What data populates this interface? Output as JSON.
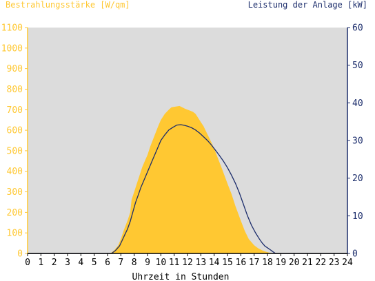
{
  "colors": {
    "background": "#FFFFFF",
    "plot_background": "#DCDCDC",
    "irradiance_fill": "#FFC832",
    "power_line": "#1B2C6B",
    "left_axis": "#FFC832",
    "right_axis": "#1B2C6B",
    "bottom_axis": "#000000"
  },
  "chart_data": {
    "type": "area",
    "left_axis_title": "Bestrahlungsstärke [W/qm]",
    "right_axis_title": "Leistung der Anlage [kW]",
    "xlabel": "Uhrzeit in Stunden",
    "xlim": [
      0,
      24
    ],
    "ylim_left": [
      0,
      1100
    ],
    "ylim_right": [
      0,
      60
    ],
    "x_ticks": [
      0,
      1,
      2,
      3,
      4,
      5,
      6,
      7,
      8,
      9,
      10,
      11,
      12,
      13,
      14,
      15,
      16,
      17,
      18,
      19,
      20,
      21,
      22,
      23,
      24
    ],
    "x_tick_labels": [
      "0",
      "1",
      "2",
      "3",
      "4",
      "5",
      "6",
      "7",
      "8",
      "9",
      "10",
      "11",
      "12",
      "13",
      "14",
      "15",
      "16",
      "17",
      "18",
      "19",
      "20",
      "21",
      "22",
      "23",
      "24"
    ],
    "y_left_ticks": [
      0,
      100,
      200,
      300,
      400,
      500,
      600,
      700,
      800,
      900,
      1000,
      1100
    ],
    "y_left_tick_labels": [
      "0",
      "100",
      "200",
      "300",
      "400",
      "500",
      "600",
      "700",
      "800",
      "900",
      "1000",
      "1100"
    ],
    "y_right_ticks": [
      0,
      10,
      20,
      30,
      40,
      50,
      60
    ],
    "y_right_tick_labels": [
      "0",
      "10",
      "20",
      "30",
      "40",
      "50",
      "60"
    ],
    "grid": false,
    "series": [
      {
        "name": "Bestrahlungsstärke",
        "axis": "left",
        "style": "area",
        "x": [
          0,
          6.2,
          6.5,
          6.8,
          7.0,
          7.2,
          7.5,
          7.7,
          7.8,
          7.9,
          8.0,
          8.2,
          8.4,
          8.6,
          8.8,
          9.0,
          9.2,
          9.5,
          9.8,
          10.0,
          10.3,
          10.6,
          10.8,
          11.0,
          11.2,
          11.4,
          11.6,
          11.8,
          12.0,
          12.2,
          12.4,
          12.6,
          12.8,
          13.0,
          13.2,
          13.5,
          13.8,
          14.0,
          14.3,
          14.6,
          15.0,
          15.3,
          15.6,
          16.0,
          16.3,
          16.6,
          17.0,
          17.3,
          17.6,
          17.9,
          18.2,
          18.5,
          18.8,
          24
        ],
        "y": [
          0,
          0,
          15,
          40,
          70,
          110,
          160,
          200,
          260,
          280,
          300,
          340,
          380,
          420,
          450,
          480,
          520,
          570,
          620,
          650,
          680,
          700,
          712,
          714,
          716,
          718,
          712,
          705,
          700,
          695,
          690,
          680,
          660,
          640,
          620,
          580,
          540,
          510,
          460,
          410,
          340,
          290,
          230,
          160,
          110,
          70,
          40,
          25,
          15,
          8,
          3,
          0,
          0,
          0
        ]
      },
      {
        "name": "Leistung",
        "axis": "right",
        "style": "line",
        "x": [
          0,
          6.3,
          6.6,
          6.9,
          7.1,
          7.3,
          7.5,
          7.7,
          7.9,
          8.1,
          8.3,
          8.5,
          8.8,
          9.1,
          9.4,
          9.7,
          10.0,
          10.3,
          10.6,
          10.9,
          11.2,
          11.5,
          11.8,
          12.0,
          12.3,
          12.6,
          12.9,
          13.2,
          13.5,
          13.8,
          14.1,
          14.4,
          14.7,
          15.0,
          15.3,
          15.6,
          15.9,
          16.2,
          16.5,
          16.8,
          17.1,
          17.4,
          17.6,
          17.8,
          18.0,
          18.2,
          18.4,
          18.6,
          24
        ],
        "y": [
          0,
          0,
          0.8,
          2,
          3.5,
          5,
          6.5,
          8.5,
          11,
          13.5,
          15.5,
          17.5,
          20,
          22.5,
          25,
          27.5,
          30,
          31.5,
          32.8,
          33.5,
          34.1,
          34.2,
          34.0,
          33.8,
          33.4,
          32.8,
          32.0,
          31.0,
          30.0,
          28.8,
          27.4,
          26.0,
          24.5,
          22.8,
          20.8,
          18.6,
          16.0,
          13.0,
          10.0,
          7.5,
          5.5,
          3.8,
          2.8,
          2.0,
          1.5,
          1.0,
          0.5,
          0,
          0
        ]
      }
    ]
  }
}
